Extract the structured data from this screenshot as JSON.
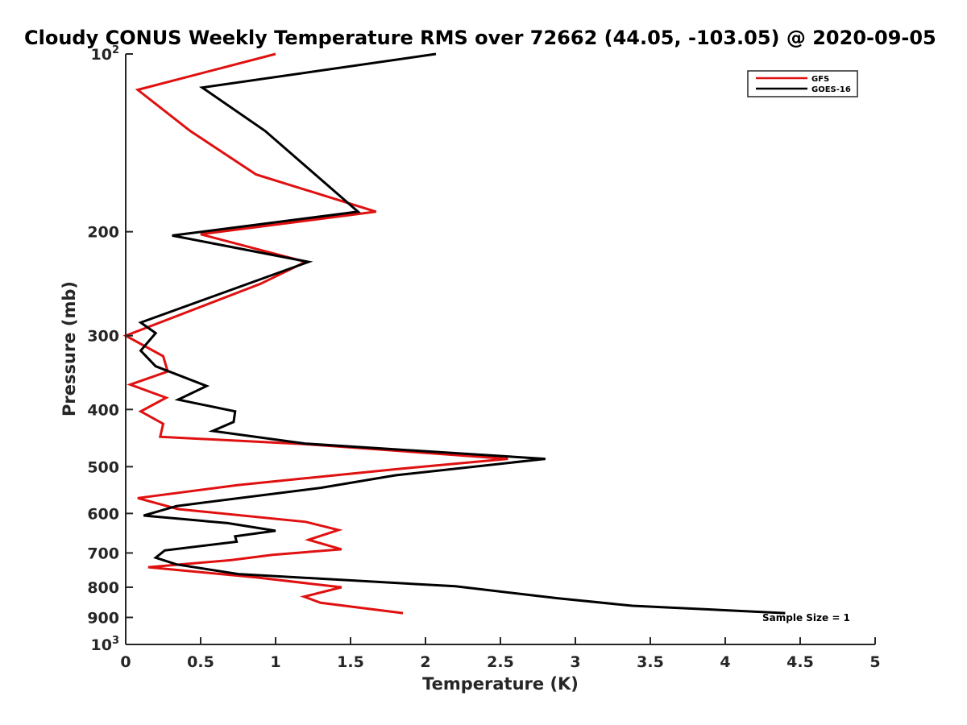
{
  "chart_data": {
    "type": "line",
    "title": "Cloudy CONUS Weekly Temperature RMS over 72662 (44.05, -103.05) @ 2020-09-05",
    "xlabel": "Temperature (K)",
    "ylabel": "Pressure (mb)",
    "xlim": [
      0,
      5
    ],
    "ylim": [
      100,
      1000
    ],
    "yscale": "log",
    "yreversed": true,
    "x_ticks": [
      "0",
      "0.5",
      "1",
      "1.5",
      "2",
      "2.5",
      "3",
      "3.5",
      "4",
      "4.5",
      "5"
    ],
    "y_ticks": [
      {
        "value": 100,
        "base": "10",
        "exp": "2"
      },
      {
        "value": 200,
        "label": "200"
      },
      {
        "value": 300,
        "label": "300"
      },
      {
        "value": 400,
        "label": "400"
      },
      {
        "value": 500,
        "label": "500"
      },
      {
        "value": 600,
        "label": "600"
      },
      {
        "value": 700,
        "label": "700"
      },
      {
        "value": 800,
        "label": "800"
      },
      {
        "value": 900,
        "label": "900"
      },
      {
        "value": 1000,
        "base": "10",
        "exp": "3"
      }
    ],
    "grid": false,
    "legend_position": "top-right",
    "annotation": "Sample Size = 1",
    "series": [
      {
        "name": "GFS",
        "color": "#e01010",
        "points": [
          [
            1.0,
            100
          ],
          [
            0.08,
            115
          ],
          [
            0.43,
            135
          ],
          [
            0.87,
            160
          ],
          [
            1.67,
            185
          ],
          [
            0.5,
            202
          ],
          [
            1.2,
            225
          ],
          [
            0.9,
            245
          ],
          [
            0.0,
            300
          ],
          [
            0.25,
            325
          ],
          [
            0.28,
            345
          ],
          [
            0.03,
            363
          ],
          [
            0.27,
            382
          ],
          [
            0.1,
            403
          ],
          [
            0.25,
            423
          ],
          [
            0.23,
            445
          ],
          [
            1.2,
            458
          ],
          [
            2.55,
            485
          ],
          [
            1.8,
            505
          ],
          [
            0.75,
            537
          ],
          [
            0.08,
            565
          ],
          [
            0.35,
            590
          ],
          [
            1.2,
            620
          ],
          [
            1.42,
            640
          ],
          [
            1.22,
            665
          ],
          [
            1.44,
            690
          ],
          [
            0.98,
            705
          ],
          [
            0.7,
            720
          ],
          [
            0.15,
            740
          ],
          [
            0.87,
            770
          ],
          [
            1.44,
            800
          ],
          [
            1.19,
            830
          ],
          [
            1.3,
            850
          ],
          [
            1.85,
            885
          ]
        ]
      },
      {
        "name": "GOES-16",
        "color": "#000000",
        "points": [
          [
            2.07,
            100
          ],
          [
            0.51,
            114
          ],
          [
            0.93,
            135
          ],
          [
            1.55,
            185
          ],
          [
            0.31,
            203
          ],
          [
            1.22,
            225
          ],
          [
            0.1,
            285
          ],
          [
            0.2,
            297
          ],
          [
            0.1,
            318
          ],
          [
            0.2,
            338
          ],
          [
            0.54,
            365
          ],
          [
            0.35,
            385
          ],
          [
            0.73,
            403
          ],
          [
            0.72,
            420
          ],
          [
            0.58,
            435
          ],
          [
            1.2,
            457
          ],
          [
            2.8,
            485
          ],
          [
            1.8,
            517
          ],
          [
            1.3,
            543
          ],
          [
            0.34,
            583
          ],
          [
            0.12,
            605
          ],
          [
            0.68,
            623
          ],
          [
            1.0,
            642
          ],
          [
            0.73,
            656
          ],
          [
            0.74,
            670
          ],
          [
            0.26,
            693
          ],
          [
            0.2,
            713
          ],
          [
            0.34,
            732
          ],
          [
            0.75,
            760
          ],
          [
            2.2,
            797
          ],
          [
            2.88,
            835
          ],
          [
            3.38,
            860
          ],
          [
            4.4,
            885
          ]
        ]
      }
    ]
  }
}
